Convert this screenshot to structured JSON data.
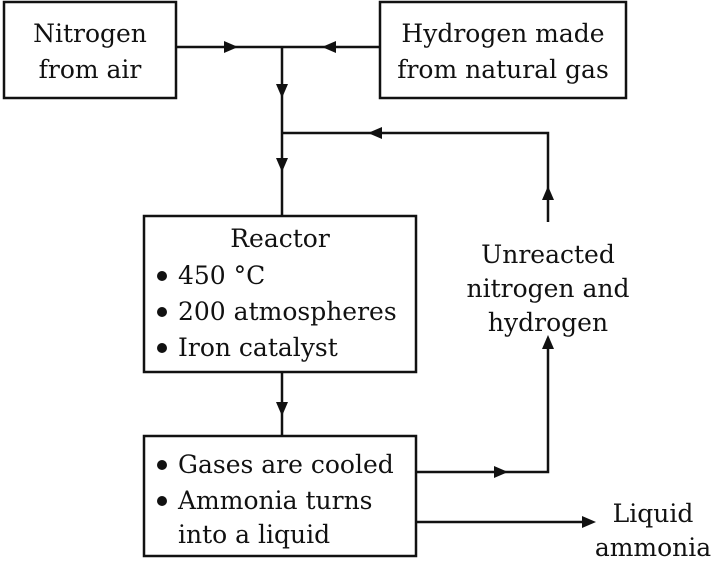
{
  "nodes": {
    "nitrogen": {
      "lines": [
        "Nitrogen",
        "from air"
      ]
    },
    "hydrogen": {
      "lines": [
        "Hydrogen made",
        "from natural gas"
      ]
    },
    "reactor": {
      "title": "Reactor",
      "bullets": [
        "450 °C",
        "200 atmospheres",
        "Iron catalyst"
      ]
    },
    "cooler": {
      "bullets": [
        {
          "lines": [
            "Gases are cooled"
          ]
        },
        {
          "lines": [
            "Ammonia turns",
            "into a liquid"
          ]
        }
      ]
    }
  },
  "labels": {
    "unreacted": [
      "Unreacted",
      "nitrogen and",
      "hydrogen"
    ],
    "liquid_ammonia": [
      "Liquid",
      "ammonia"
    ]
  }
}
